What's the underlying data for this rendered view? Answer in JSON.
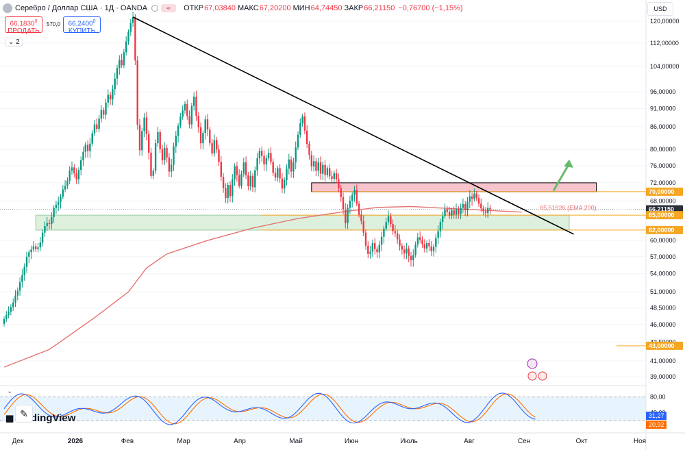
{
  "header": {
    "symbol_title": "Серебро / Доллар США · 1Д · OANDA",
    "ohlc": [
      {
        "key": "ОТКР",
        "value": "67,03840"
      },
      {
        "key": "МАКС",
        "value": "67,20200"
      },
      {
        "key": "МИН",
        "value": "64,74450"
      },
      {
        "key": "ЗАКР",
        "value": "66,21150"
      },
      {
        "key": "",
        "value": "−0,76700 (−1,15%)"
      }
    ]
  },
  "trade": {
    "sell_price": "66,1830",
    "sell_price_sup": "0",
    "sell_label": "ПРОДАТЬ",
    "spread": "570,0",
    "buy_price": "66,2400",
    "buy_price_sup": "0",
    "buy_label": "КУПИТЬ"
  },
  "indicator_toggle": "2",
  "currency": "USD",
  "brand": "TradingView",
  "colors": {
    "up": "#089981",
    "down": "#f23645",
    "ema": "#e57373",
    "trendline": "#000000",
    "resistance_zone": "#f8c4cb",
    "support_zone": "#d5ecd6",
    "level_line": "#f5a623",
    "price_label": "#2a2e39",
    "stoch_k": "#2962ff",
    "stoch_d": "#ff6d00",
    "stoch_band": "#d9ecfb"
  },
  "chart_data": {
    "type": "candlestick",
    "title": "Серебро / Доллар США · 1Д · OANDA",
    "y_scale": "log",
    "ylim": [
      37.5,
      124
    ],
    "y_ticks": [
      "120,00000",
      "112,00000",
      "104,00000",
      "96,00000",
      "91,00000",
      "86,00000",
      "80,00000",
      "76,00000",
      "72,00000",
      "68,00000",
      "60,00000",
      "57,00000",
      "54,00000",
      "51,00000",
      "48,50000",
      "46,00000",
      "43,50000",
      "41,00000",
      "39,00000"
    ],
    "price_labels": [
      {
        "text": "70,00000",
        "value": 70,
        "style": "orange"
      },
      {
        "text": "66,21150",
        "value": 66.2115,
        "style": "current"
      },
      {
        "text": "65,00000",
        "value": 65,
        "style": "orange"
      },
      {
        "text": "62,00000",
        "value": 62,
        "style": "orange"
      },
      {
        "text": "43,00000",
        "value": 43,
        "style": "orange"
      }
    ],
    "x_labels": [
      "Дек",
      "2026",
      "Фев",
      "Мар",
      "Апр",
      "Май",
      "Июн",
      "Июль",
      "Авг",
      "Сен",
      "Окт",
      "Ноя"
    ],
    "closes": [
      46.8,
      47.4,
      47.9,
      48.6,
      49.3,
      50.4,
      51.2,
      52.6,
      53.8,
      55.2,
      57.0,
      57.8,
      58.3,
      58.9,
      58.4,
      58.7,
      59.6,
      61.5,
      62.8,
      63.4,
      63.2,
      64.6,
      66.5,
      67.2,
      67.8,
      68.9,
      70.5,
      71.3,
      72.5,
      74.8,
      75.6,
      74.2,
      72.8,
      75.0,
      77.3,
      79.4,
      81.2,
      79.6,
      81.5,
      84.2,
      86.6,
      85.4,
      88.2,
      90.6,
      89.3,
      92.8,
      95.1,
      93.7,
      96.8,
      100.1,
      103.5,
      106.2,
      104.4,
      108.8,
      112.6,
      116.0,
      119.4,
      121.6,
      106.0,
      86.5,
      79.8,
      84.8,
      88.5,
      84.0,
      79.2,
      73.6,
      74.8,
      81.6,
      84.5,
      80.1,
      77.3,
      80.4,
      78.0,
      74.6,
      76.2,
      80.8,
      83.5,
      86.2,
      88.7,
      90.5,
      92.4,
      88.9,
      86.6,
      91.8,
      94.5,
      89.0,
      85.8,
      81.6,
      84.3,
      88.0,
      85.2,
      81.6,
      79.0,
      82.4,
      80.0,
      76.9,
      73.4,
      70.8,
      68.6,
      71.5,
      69.0,
      72.8,
      75.9,
      73.8,
      71.3,
      74.1,
      76.8,
      73.7,
      71.2,
      73.6,
      71.0,
      74.9,
      77.8,
      79.7,
      78.4,
      76.3,
      77.8,
      79.1,
      76.9,
      74.3,
      73.2,
      75.4,
      73.0,
      70.7,
      72.6,
      75.3,
      77.5,
      74.6,
      76.8,
      80.5,
      83.8,
      86.9,
      88.8,
      84.9,
      81.4,
      78.6,
      75.8,
      77.1,
      74.8,
      76.8,
      74.1,
      76.2,
      73.8,
      75.4,
      73.5,
      72.9,
      74.2,
      72.8,
      70.8,
      68.8,
      66.2,
      63.4,
      66.5,
      68.0,
      69.3,
      70.4,
      67.4,
      65.1,
      63.8,
      61.5,
      59.0,
      57.5,
      57.9,
      59.5,
      58.4,
      57.8,
      59.2,
      60.7,
      62.3,
      63.6,
      64.8,
      63.2,
      61.8,
      61.4,
      60.2,
      59.0,
      58.3,
      57.6,
      58.5,
      57.1,
      56.4,
      57.3,
      59.2,
      60.6,
      60.1,
      59.3,
      58.5,
      59.5,
      58.9,
      58.0,
      58.8,
      60.5,
      61.8,
      63.6,
      64.8,
      66.2,
      65.7,
      64.9,
      66.0,
      65.1,
      66.3,
      65.2,
      66.5,
      67.3,
      66.0,
      67.8,
      69.0,
      68.4,
      69.6,
      68.6,
      67.4,
      66.4,
      65.8,
      65.4,
      66.5,
      66.2
    ],
    "ema200": [
      [
        0,
        40.2
      ],
      [
        20,
        42.5
      ],
      [
        40,
        47.0
      ],
      [
        55,
        51.0
      ],
      [
        63,
        55.0
      ],
      [
        72,
        57.5
      ],
      [
        90,
        60.0
      ],
      [
        110,
        62.4
      ],
      [
        130,
        64.3
      ],
      [
        150,
        65.7
      ],
      [
        165,
        66.6
      ],
      [
        180,
        66.8
      ],
      [
        205,
        66.2
      ],
      [
        229,
        65.62
      ]
    ],
    "ema_label": "65,61926 (EMA 200)",
    "trendline": [
      [
        57,
        121.6
      ],
      [
        252,
        61.2
      ]
    ],
    "resistance_zone": {
      "from_index": 136,
      "to_index": 262,
      "low": 70.0,
      "high": 72.0
    },
    "support_zone": {
      "from_index": 14,
      "to_index": 250,
      "low": 62.0,
      "high": 65.0
    },
    "horizontal_levels": [
      70,
      65,
      62,
      43
    ],
    "arrow": {
      "from_index": 243,
      "from_value": 70.2,
      "to_index": 250,
      "to_value": 77.5
    },
    "stochastic": {
      "k_label": "31,27",
      "d_label": "20,92",
      "band": [
        20,
        80
      ],
      "ticks": [
        "80,00",
        "40,00"
      ]
    }
  }
}
